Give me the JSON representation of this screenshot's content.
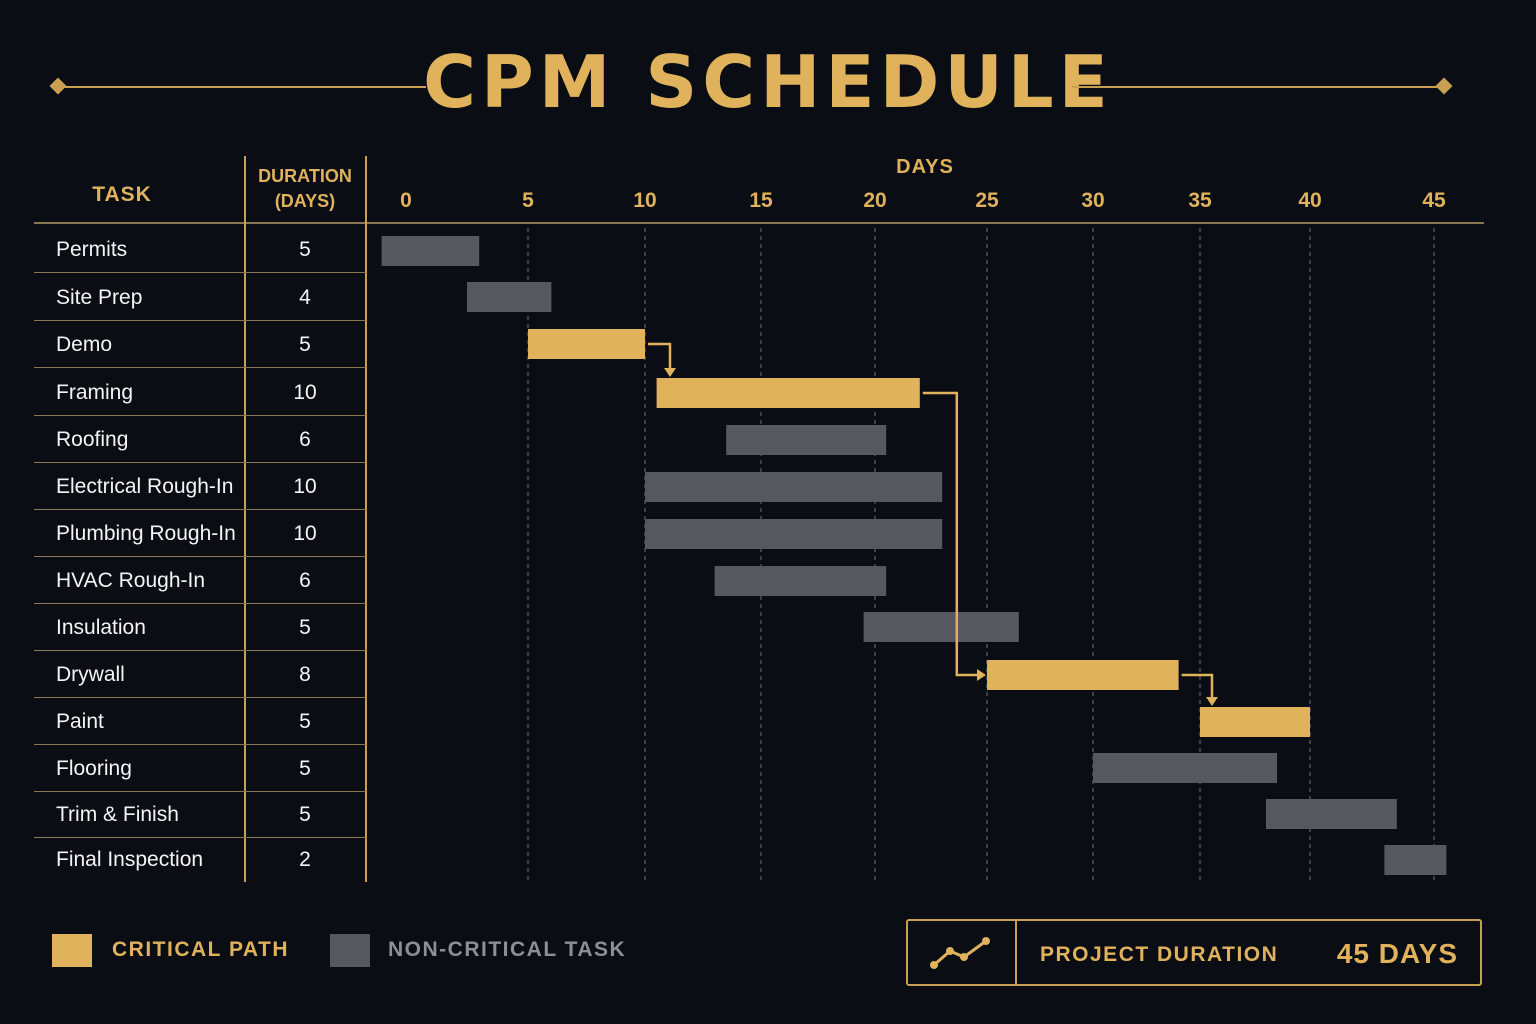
{
  "title": "CPM SCHEDULE",
  "table_headers": {
    "task": "TASK",
    "duration_line1": "DURATION",
    "duration_line2": "(DAYS)",
    "days": "DAYS"
  },
  "colors": {
    "critical": "#e1b25c",
    "non_critical": "#55585e",
    "background": "#0a0d14",
    "accent": "#c9a052"
  },
  "chart_data": {
    "type": "gantt",
    "title": "CPM SCHEDULE",
    "xlabel": "DAYS",
    "x_ticks": [
      0,
      5,
      10,
      15,
      20,
      25,
      30,
      35,
      40,
      45
    ],
    "xlim": [
      0,
      45
    ],
    "grid": true,
    "tasks": [
      {
        "name": "Permits",
        "duration": 5,
        "start": -1,
        "end": 3,
        "critical": false
      },
      {
        "name": "Site Prep",
        "duration": 4,
        "start": 2.5,
        "end": 6,
        "critical": false
      },
      {
        "name": "Demo",
        "duration": 5,
        "start": 5,
        "end": 10,
        "critical": true
      },
      {
        "name": "Framing",
        "duration": 10,
        "start": 10.5,
        "end": 22,
        "critical": true
      },
      {
        "name": "Roofing",
        "duration": 6,
        "start": 13.5,
        "end": 20.5,
        "critical": false
      },
      {
        "name": "Electrical Rough-In",
        "duration": 10,
        "start": 10,
        "end": 23,
        "critical": false
      },
      {
        "name": "Plumbing Rough-In",
        "duration": 10,
        "start": 10,
        "end": 23,
        "critical": false
      },
      {
        "name": "HVAC Rough-In",
        "duration": 6,
        "start": 13,
        "end": 20.5,
        "critical": false
      },
      {
        "name": "Insulation",
        "duration": 5,
        "start": 19.5,
        "end": 26.5,
        "critical": false
      },
      {
        "name": "Drywall",
        "duration": 8,
        "start": 25,
        "end": 34,
        "critical": true
      },
      {
        "name": "Paint",
        "duration": 5,
        "start": 35,
        "end": 40,
        "critical": true
      },
      {
        "name": "Flooring",
        "duration": 5,
        "start": 30,
        "end": 38.5,
        "critical": false
      },
      {
        "name": "Trim & Finish",
        "duration": 5,
        "start": 38,
        "end": 43.5,
        "critical": false
      },
      {
        "name": "Final Inspection",
        "duration": 2,
        "start": 43,
        "end": 45.5,
        "critical": false
      }
    ],
    "dependencies": [
      {
        "from": "Demo",
        "to": "Framing"
      },
      {
        "from": "Framing",
        "to": "Drywall"
      },
      {
        "from": "Drywall",
        "to": "Paint"
      }
    ]
  },
  "legend": {
    "critical_label": "CRITICAL PATH",
    "non_critical_label": "NON-CRITICAL TASK"
  },
  "summary": {
    "label": "PROJECT DURATION",
    "value": "45 DAYS",
    "icon": "trend-chart-icon"
  }
}
